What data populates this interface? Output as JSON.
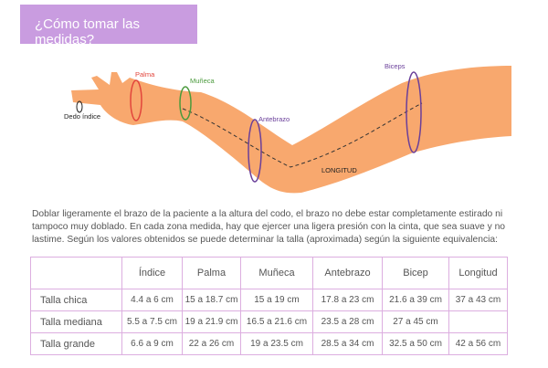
{
  "header": {
    "title": "¿Cómo tomar las medidas?"
  },
  "diagram": {
    "labels": {
      "palma": "Palma",
      "muneca": "Muñeca",
      "dedo": "Dedo índice",
      "antebrazo": "Antebrazo",
      "biceps": "Biceps",
      "longitud": "LONGITUD"
    }
  },
  "description": [
    "Doblar ligeramente el brazo de la paciente a la altura del codo, el brazo no debe estar completamente estirado ni",
    "tampoco muy doblado. En cada zona medida, hay que ejercer una ligera presión con la cinta, que sea suave y no",
    "lastime. Según los valores obtenidos se puede determinar la talla (aproximada) según la siguiente equivalencia:"
  ],
  "table": {
    "columns": [
      null,
      "Índice",
      "Palma",
      "Muñeca",
      "Antebrazo",
      "Bicep",
      "Longitud"
    ],
    "rows": [
      [
        "Talla chica",
        "4.4 a 6 cm",
        "15 a 18.7 cm",
        "15 a 19 cm",
        "17.8 a 23 cm",
        "21.6 a 39 cm",
        "37 a 43 cm"
      ],
      [
        "Talla mediana",
        "5.5 a 7.5 cm",
        "19 a 21.9 cm",
        "16.5 a 21.6 cm",
        "23.5 a 28 cm",
        "27 a 45 cm",
        null
      ],
      [
        "Talla grande",
        "6.6 a 9 cm",
        "22 a 26 cm",
        "19 a 23.5 cm",
        "28.5 a 34 cm",
        "32.5 a 50 cm",
        "42 a 56 cm"
      ]
    ]
  }
}
